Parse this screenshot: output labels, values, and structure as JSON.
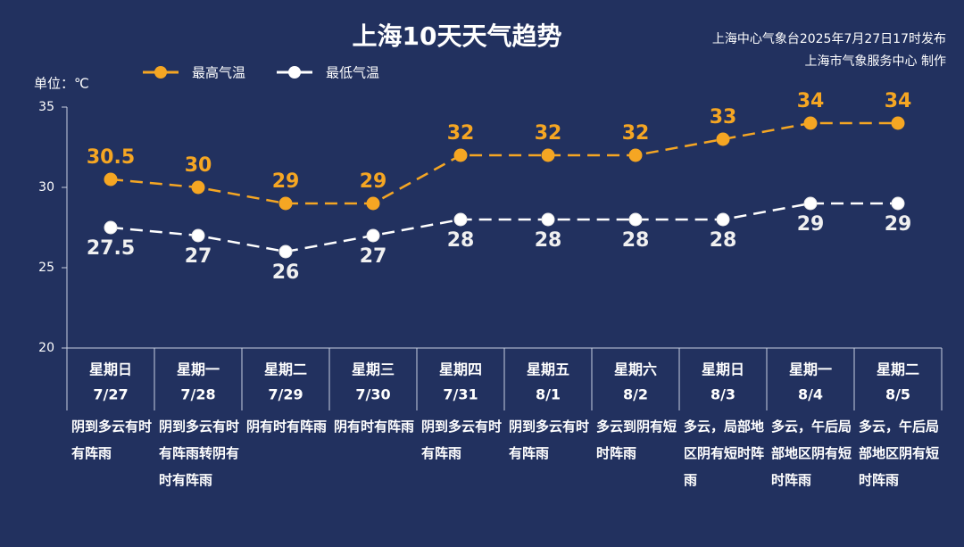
{
  "chart_data": {
    "type": "line",
    "title": "上海10天天气趋势",
    "source": [
      "上海中心气象台2025年7月27日17时发布",
      "上海市气象服务中心 制作"
    ],
    "unit_label": "单位：℃",
    "weekdays": [
      "星期日",
      "星期一",
      "星期二",
      "星期三",
      "星期四",
      "星期五",
      "星期六",
      "星期日",
      "星期一",
      "星期二"
    ],
    "categories": [
      "7/27",
      "7/28",
      "7/29",
      "7/30",
      "7/31",
      "8/1",
      "8/2",
      "8/3",
      "8/4",
      "8/5"
    ],
    "weather": [
      "阴到多云有时有阵雨",
      "阴到多云有时有阵雨转阴有时有阵雨",
      "阴有时有阵雨",
      "阴有时有阵雨",
      "阴到多云有时有阵雨",
      "阴到多云有时有阵雨",
      "多云到阴有短时阵雨",
      "多云，局部地区阴有短时阵雨",
      "多云，午后局部地区阴有短时阵雨",
      "多云，午后局部地区阴有短时阵雨"
    ],
    "series": [
      {
        "name": "最高气温",
        "color": "#f5a623",
        "values": [
          30.5,
          30,
          29,
          29,
          32,
          32,
          32,
          33,
          34,
          34
        ]
      },
      {
        "name": "最低气温",
        "color": "#ffffff",
        "values": [
          27.5,
          27,
          26,
          27,
          28,
          28,
          28,
          28,
          29,
          29
        ]
      }
    ],
    "ylim": [
      20,
      35
    ],
    "yticks": [
      20,
      25,
      30,
      35
    ],
    "grid": false
  }
}
